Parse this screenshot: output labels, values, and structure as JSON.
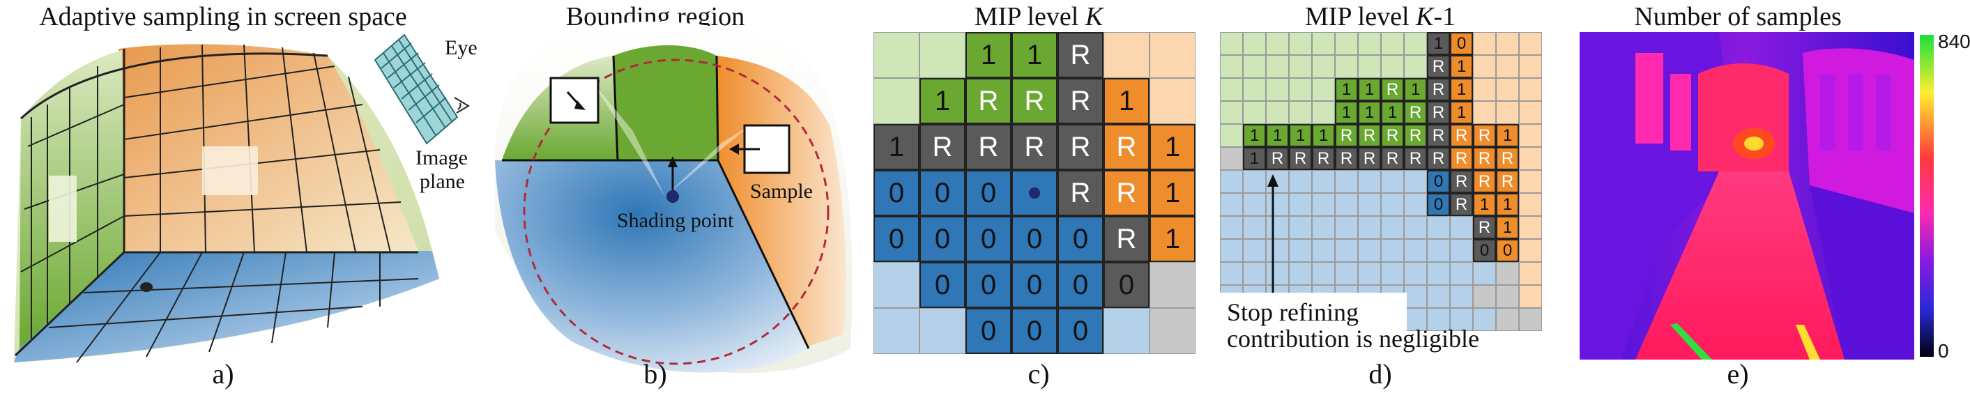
{
  "panels": {
    "a": {
      "title": "Adaptive sampling in screen space",
      "label": "a)",
      "eye": "Eye",
      "image_plane_1": "Image",
      "image_plane_2": "plane"
    },
    "b": {
      "title": "Bounding region",
      "label": "b)",
      "shading_point": "Shading point",
      "sample": "Sample"
    },
    "c": {
      "title_prefix": "MIP level ",
      "title_var": "K",
      "label": "c)"
    },
    "d": {
      "title_prefix": "MIP level ",
      "title_var": "K",
      "title_suffix": "-1",
      "label": "d)",
      "note_line1": "Stop refining",
      "note_line2": "contribution is negligible"
    },
    "e": {
      "title": "Number of samples",
      "label": "e)",
      "scale_max": "840",
      "scale_min": "0"
    }
  },
  "colors": {
    "green": "#6aa832",
    "orange": "#ef8d2c",
    "blue": "#2f77b6",
    "dark": "#5a5a5a",
    "light_green": "#cfe6b9",
    "light_orange": "#fbd6ae",
    "light_blue": "#b5d1e9",
    "light_gray": "#c8c8c8"
  },
  "grid_c": {
    "rows": [
      [
        "lg",
        "lg",
        "G:1",
        "G:1",
        "D:R",
        "lo",
        "lo"
      ],
      [
        "lg",
        "G:1",
        "G:R",
        "G:R",
        "D:R",
        "O:1",
        "lo"
      ],
      [
        "D:1",
        "D:R",
        "D:R",
        "D:R",
        "D:R",
        "O:R",
        "O:1"
      ],
      [
        "B:0",
        "B:0",
        "B:0",
        "B:dot",
        "D:R",
        "O:R",
        "O:1"
      ],
      [
        "B:0",
        "B:0",
        "B:0",
        "B:0",
        "B:0",
        "D:R",
        "O:1"
      ],
      [
        "lb",
        "B:0",
        "B:0",
        "B:0",
        "B:0",
        "D:0",
        "lgr"
      ],
      [
        "lb",
        "lb",
        "B:0",
        "B:0",
        "B:0",
        "lb",
        "lgr"
      ]
    ]
  },
  "grid_d": {
    "rows": [
      [
        "lg",
        "lg",
        "lg",
        "lg",
        "lg",
        "lg",
        "lg",
        "lg",
        "lg",
        "D:1",
        "O:0",
        "lo",
        "lo",
        "lo"
      ],
      [
        "lg",
        "lg",
        "lg",
        "lg",
        "lg",
        "lg",
        "lg",
        "lg",
        "lg",
        "D:R",
        "O:1",
        "lo",
        "lo",
        "lo"
      ],
      [
        "lg",
        "lg",
        "lg",
        "lg",
        "lg",
        "G:1",
        "G:1",
        "G:R",
        "G:1",
        "D:R",
        "O:1",
        "lo",
        "lo",
        "lo"
      ],
      [
        "lg",
        "lg",
        "lg",
        "lg",
        "lg",
        "G:1",
        "G:1",
        "G:1",
        "G:R",
        "D:R",
        "O:1",
        "lo",
        "lo",
        "lo"
      ],
      [
        "lg",
        "G:1",
        "G:1",
        "G:1",
        "G:1",
        "G:R",
        "G:R",
        "G:R",
        "G:R",
        "D:R",
        "O:R",
        "O:R",
        "O:1",
        "lo"
      ],
      [
        "lgr",
        "D:1",
        "D:R",
        "D:R",
        "D:R",
        "D:R",
        "D:R",
        "D:R",
        "D:R",
        "D:R",
        "O:R",
        "O:R",
        "O:R",
        "lo"
      ],
      [
        "lb",
        "lb",
        "lb",
        "lb",
        "lb",
        "lb",
        "lb",
        "lb",
        "lb",
        "B:0",
        "D:R",
        "O:R",
        "O:R",
        "lo"
      ],
      [
        "lb",
        "lb",
        "lb",
        "lb",
        "lb",
        "lb",
        "lb",
        "lb",
        "lb",
        "B:0",
        "D:R",
        "O:1",
        "O:1",
        "lo"
      ],
      [
        "lb",
        "lb",
        "lb",
        "lb",
        "lb",
        "lb",
        "lb",
        "lb",
        "lb",
        "lb",
        "lb",
        "D:R",
        "O:1",
        "lo"
      ],
      [
        "lb",
        "lb",
        "lb",
        "lb",
        "lb",
        "lb",
        "lb",
        "lb",
        "lb",
        "lb",
        "lb",
        "D:0",
        "O:0",
        "lo"
      ],
      [
        "lb",
        "lb",
        "lb",
        "lb",
        "lb",
        "lb",
        "lb",
        "lb",
        "lb",
        "lb",
        "lb",
        "lb",
        "lgr",
        "lo"
      ],
      [
        "lb",
        "lb",
        "lb",
        "lb",
        "lb",
        "lb",
        "lb",
        "lb",
        "lb",
        "lb",
        "lb",
        "lgr",
        "lgr",
        "lo"
      ],
      [
        "lb",
        "lb",
        "lb",
        "lb",
        "lb",
        "lb",
        "lb",
        "lb",
        "lb",
        "lb",
        "lb",
        "lb",
        "lgr",
        "lgr"
      ]
    ]
  }
}
